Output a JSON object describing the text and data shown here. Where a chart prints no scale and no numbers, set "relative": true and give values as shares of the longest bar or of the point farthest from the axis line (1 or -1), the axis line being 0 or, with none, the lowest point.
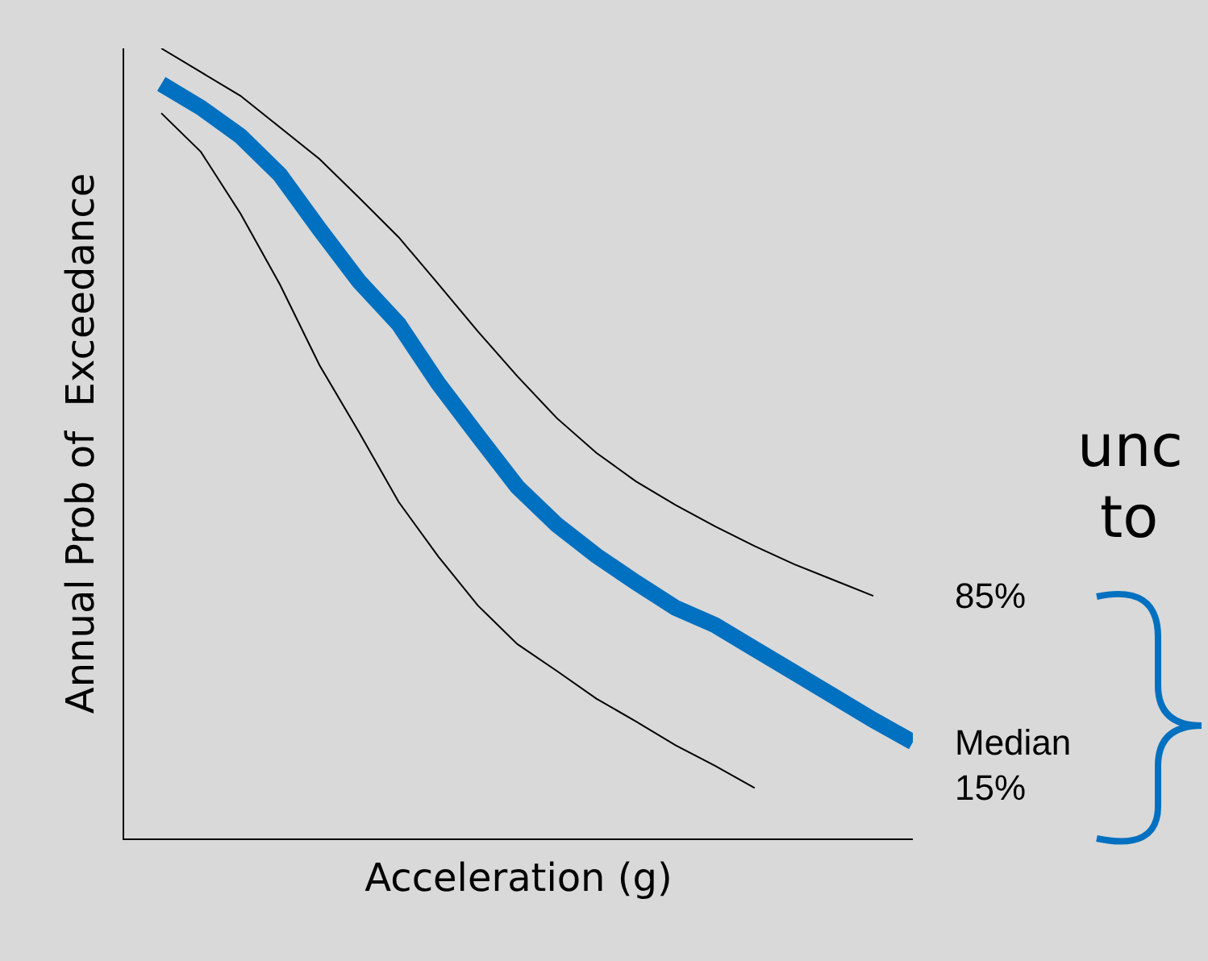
{
  "chart_data": {
    "type": "line",
    "relative": true,
    "xlabel": "Acceleration (g)",
    "ylabel": "Annual Prob of  Exceedance",
    "tick_labels": false,
    "grid": false,
    "legend": false,
    "marker": "none",
    "line_style": "solid",
    "categories": [
      null,
      null,
      null,
      null,
      null,
      null,
      null,
      null,
      null,
      null,
      null,
      null,
      null,
      null,
      null,
      null,
      null,
      null,
      null,
      null
    ],
    "annotations": [
      "unc",
      "to"
    ],
    "series": [
      {
        "name": "85%",
        "color": "#000000",
        "values": [
          1.0,
          0.97,
          0.94,
          0.9,
          0.86,
          0.811,
          0.761,
          0.702,
          0.642,
          0.585,
          0.532,
          0.488,
          0.452,
          0.422,
          0.395,
          0.37,
          0.347,
          0.327,
          0.307,
          null
        ]
      },
      {
        "name": "Median",
        "color": "#0070c0",
        "values": [
          0.955,
          0.925,
          0.889,
          0.84,
          0.771,
          0.705,
          0.651,
          0.576,
          0.51,
          0.445,
          0.397,
          0.358,
          0.324,
          0.292,
          0.27,
          0.24,
          0.21,
          0.18,
          0.15,
          0.122
        ]
      },
      {
        "name": "15%",
        "color": "#000000",
        "values": [
          0.918,
          0.869,
          0.791,
          0.701,
          0.599,
          0.514,
          0.426,
          0.357,
          0.295,
          0.246,
          0.212,
          0.177,
          0.148,
          0.118,
          0.092,
          0.064,
          null,
          null,
          null,
          null
        ]
      }
    ]
  }
}
